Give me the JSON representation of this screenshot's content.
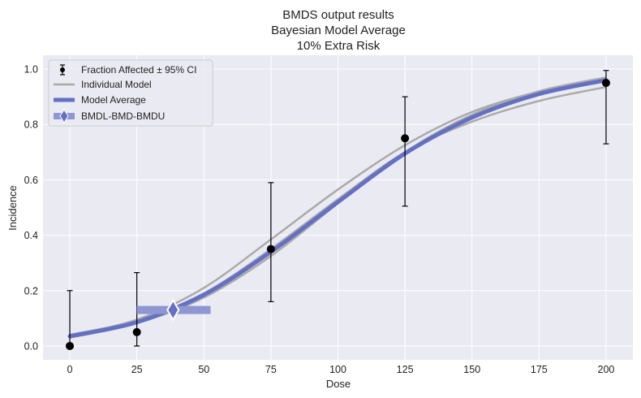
{
  "chart_data": {
    "type": "line",
    "title": [
      "BMDS output results",
      "Bayesian Model Average",
      "10% Extra Risk"
    ],
    "xlabel": "Dose",
    "ylabel": "Incidence",
    "xlim": [
      -10,
      210
    ],
    "ylim": [
      -0.05,
      1.05
    ],
    "xticks": [
      0,
      25,
      50,
      75,
      100,
      125,
      150,
      175,
      200
    ],
    "yticks": [
      0.0,
      0.2,
      0.4,
      0.6,
      0.8,
      1.0
    ],
    "xtick_labels": [
      "0",
      "25",
      "50",
      "75",
      "100",
      "125",
      "150",
      "175",
      "200"
    ],
    "ytick_labels": [
      "0.0",
      "0.2",
      "0.4",
      "0.6",
      "0.8",
      "1.0"
    ],
    "grid": true,
    "legend_position": "top-left",
    "legend": [
      "Fraction Affected ± 95% CI",
      "Individual Model",
      "Model Average",
      "BMDL-BMD-BMDU"
    ],
    "colors": {
      "observed": "#000000",
      "individual_model": "#aaaaaa",
      "model_average": "#6470c3",
      "bmd_band": "#8f97d2",
      "plot_background": "#eaeaf2",
      "grid": "#ffffff"
    },
    "observed": {
      "dose": [
        0,
        25,
        75,
        125,
        200
      ],
      "incidence": [
        0.0,
        0.05,
        0.35,
        0.75,
        0.95
      ],
      "ci_lower": [
        0.0,
        0.0,
        0.16,
        0.505,
        0.73
      ],
      "ci_upper": [
        0.2,
        0.265,
        0.59,
        0.9,
        0.995
      ]
    },
    "individual_models": [
      {
        "dose": [
          0,
          25,
          50,
          75,
          100,
          125,
          150,
          175,
          200
        ],
        "incidence": [
          0.04,
          0.095,
          0.21,
          0.385,
          0.565,
          0.725,
          0.845,
          0.918,
          0.96
        ]
      },
      {
        "dose": [
          0,
          25,
          50,
          75,
          100,
          125,
          150,
          175,
          200
        ],
        "incidence": [
          0.035,
          0.09,
          0.19,
          0.35,
          0.53,
          0.7,
          0.81,
          0.885,
          0.935
        ]
      },
      {
        "dose": [
          0,
          25,
          50,
          75,
          100,
          125,
          150,
          175,
          200
        ],
        "incidence": [
          0.03,
          0.082,
          0.175,
          0.325,
          0.515,
          0.7,
          0.835,
          0.92,
          0.97
        ]
      }
    ],
    "model_average": {
      "dose": [
        0,
        25,
        50,
        75,
        100,
        125,
        150,
        175,
        200
      ],
      "incidence": [
        0.035,
        0.086,
        0.185,
        0.34,
        0.52,
        0.695,
        0.825,
        0.91,
        0.96
      ]
    },
    "bmd": {
      "bmdl": 25,
      "bmd": 38.5,
      "bmdu": 52.5,
      "response": 0.13
    }
  }
}
